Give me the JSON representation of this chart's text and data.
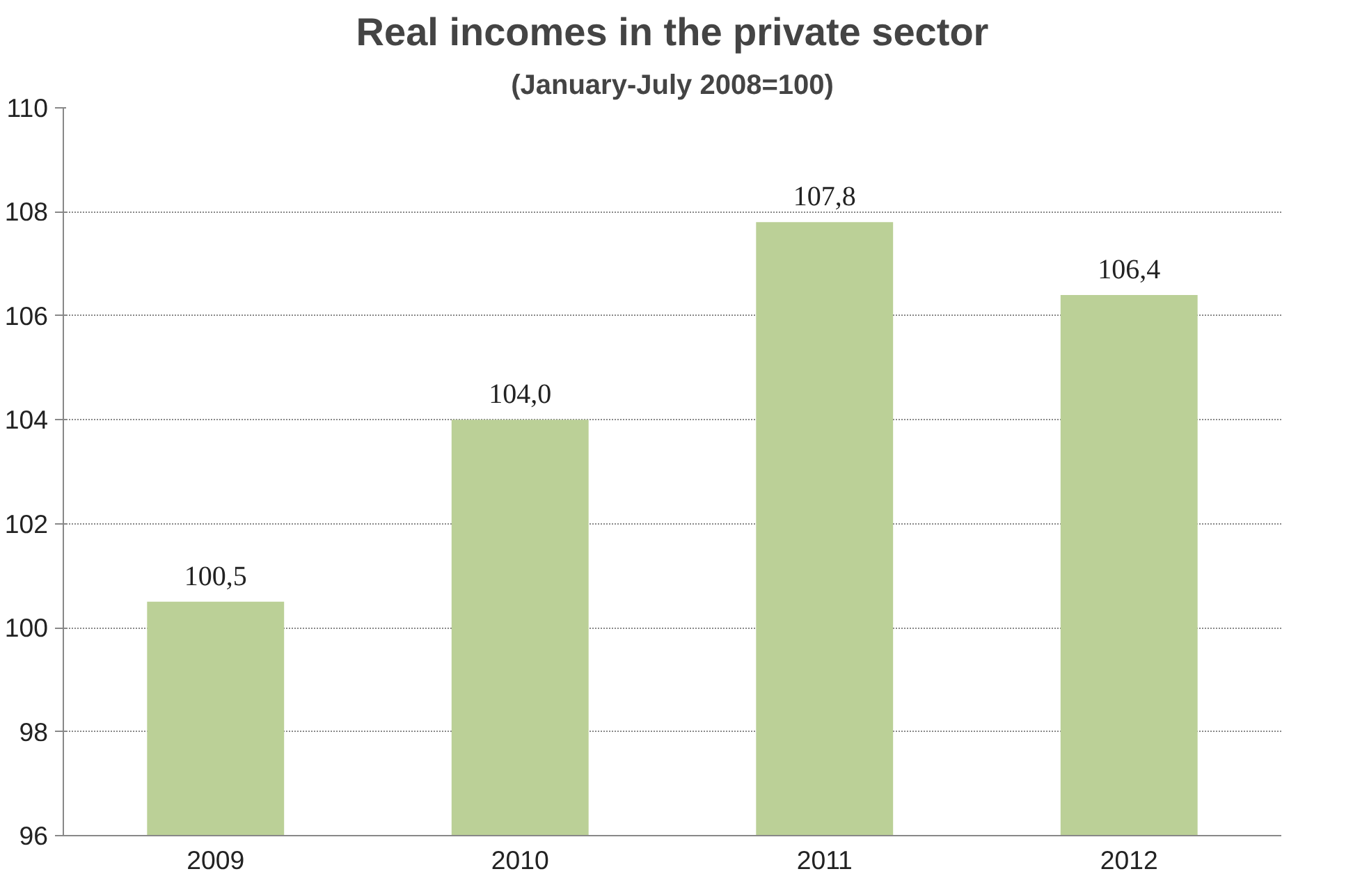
{
  "chart_data": {
    "type": "bar",
    "title": "Real incomes in the private sector",
    "subtitle": "(January-July 2008=100)",
    "categories": [
      "2009",
      "2010",
      "2011",
      "2012"
    ],
    "values": [
      100.5,
      104.0,
      107.8,
      106.4
    ],
    "value_labels": [
      "100,5",
      "104,0",
      "107,8",
      "106,4"
    ],
    "color": "#bbd097",
    "ylim": [
      96,
      110
    ],
    "yticks": [
      96,
      98,
      100,
      102,
      104,
      106,
      108,
      110
    ],
    "grid": "y"
  }
}
